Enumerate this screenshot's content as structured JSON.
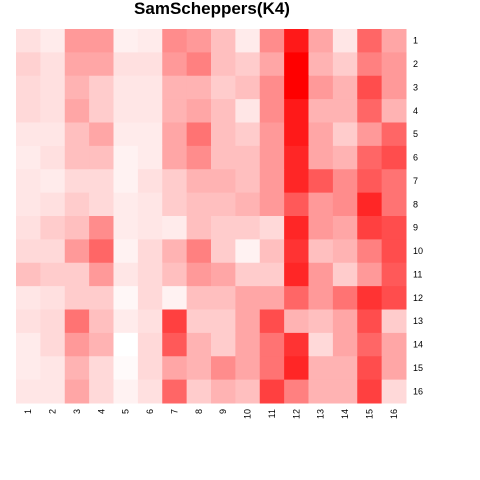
{
  "chart_data": {
    "type": "heatmap",
    "title": "SamScheppers(K4)",
    "xlabel": "",
    "ylabel": "",
    "x_labels": [
      "1",
      "2",
      "3",
      "4",
      "5",
      "6",
      "7",
      "8",
      "9",
      "10",
      "11",
      "12",
      "13",
      "14",
      "15",
      "16"
    ],
    "y_labels": [
      "1",
      "2",
      "3",
      "4",
      "5",
      "6",
      "7",
      "8",
      "9",
      "10",
      "11",
      "12",
      "13",
      "14",
      "15",
      "16"
    ],
    "value_range": [
      0,
      1
    ],
    "color_scale": {
      "low": "#ffffff",
      "high": "#ff0000"
    },
    "legend": "none",
    "grid": false,
    "values": [
      [
        0.12,
        0.08,
        0.4,
        0.4,
        0.06,
        0.08,
        0.45,
        0.4,
        0.25,
        0.08,
        0.45,
        0.9,
        0.35,
        0.1,
        0.6,
        0.35
      ],
      [
        0.18,
        0.12,
        0.35,
        0.35,
        0.12,
        0.12,
        0.4,
        0.5,
        0.25,
        0.2,
        0.35,
        1.0,
        0.3,
        0.2,
        0.5,
        0.4
      ],
      [
        0.15,
        0.12,
        0.3,
        0.2,
        0.1,
        0.1,
        0.3,
        0.3,
        0.2,
        0.25,
        0.45,
        1.0,
        0.4,
        0.3,
        0.7,
        0.4
      ],
      [
        0.15,
        0.12,
        0.35,
        0.2,
        0.1,
        0.1,
        0.3,
        0.35,
        0.25,
        0.1,
        0.45,
        0.9,
        0.3,
        0.3,
        0.6,
        0.3
      ],
      [
        0.1,
        0.1,
        0.25,
        0.35,
        0.08,
        0.08,
        0.35,
        0.55,
        0.25,
        0.2,
        0.4,
        0.9,
        0.35,
        0.2,
        0.4,
        0.6
      ],
      [
        0.08,
        0.12,
        0.25,
        0.25,
        0.05,
        0.08,
        0.35,
        0.45,
        0.25,
        0.25,
        0.4,
        0.85,
        0.35,
        0.3,
        0.6,
        0.7
      ],
      [
        0.1,
        0.08,
        0.15,
        0.15,
        0.05,
        0.12,
        0.2,
        0.3,
        0.3,
        0.25,
        0.4,
        0.85,
        0.65,
        0.45,
        0.65,
        0.55
      ],
      [
        0.1,
        0.12,
        0.2,
        0.15,
        0.08,
        0.1,
        0.2,
        0.25,
        0.25,
        0.3,
        0.4,
        0.65,
        0.4,
        0.45,
        0.85,
        0.55
      ],
      [
        0.12,
        0.2,
        0.25,
        0.45,
        0.08,
        0.1,
        0.08,
        0.25,
        0.2,
        0.2,
        0.15,
        0.85,
        0.4,
        0.35,
        0.75,
        0.7
      ],
      [
        0.15,
        0.15,
        0.4,
        0.6,
        0.05,
        0.15,
        0.3,
        0.5,
        0.2,
        0.05,
        0.25,
        0.8,
        0.25,
        0.3,
        0.5,
        0.7
      ],
      [
        0.25,
        0.2,
        0.2,
        0.4,
        0.1,
        0.15,
        0.25,
        0.4,
        0.35,
        0.2,
        0.2,
        0.85,
        0.4,
        0.2,
        0.4,
        0.65
      ],
      [
        0.1,
        0.12,
        0.2,
        0.2,
        0.03,
        0.15,
        0.05,
        0.25,
        0.25,
        0.35,
        0.35,
        0.6,
        0.4,
        0.55,
        0.8,
        0.7
      ],
      [
        0.12,
        0.15,
        0.55,
        0.25,
        0.08,
        0.12,
        0.75,
        0.2,
        0.2,
        0.35,
        0.7,
        0.3,
        0.25,
        0.35,
        0.7,
        0.2
      ],
      [
        0.08,
        0.15,
        0.4,
        0.3,
        0.0,
        0.15,
        0.65,
        0.3,
        0.2,
        0.35,
        0.55,
        0.8,
        0.15,
        0.35,
        0.6,
        0.35
      ],
      [
        0.08,
        0.1,
        0.3,
        0.15,
        0.02,
        0.15,
        0.35,
        0.3,
        0.45,
        0.35,
        0.55,
        0.85,
        0.3,
        0.3,
        0.7,
        0.35
      ],
      [
        0.1,
        0.1,
        0.35,
        0.15,
        0.05,
        0.12,
        0.6,
        0.2,
        0.3,
        0.25,
        0.75,
        0.5,
        0.3,
        0.3,
        0.75,
        0.15
      ]
    ]
  }
}
